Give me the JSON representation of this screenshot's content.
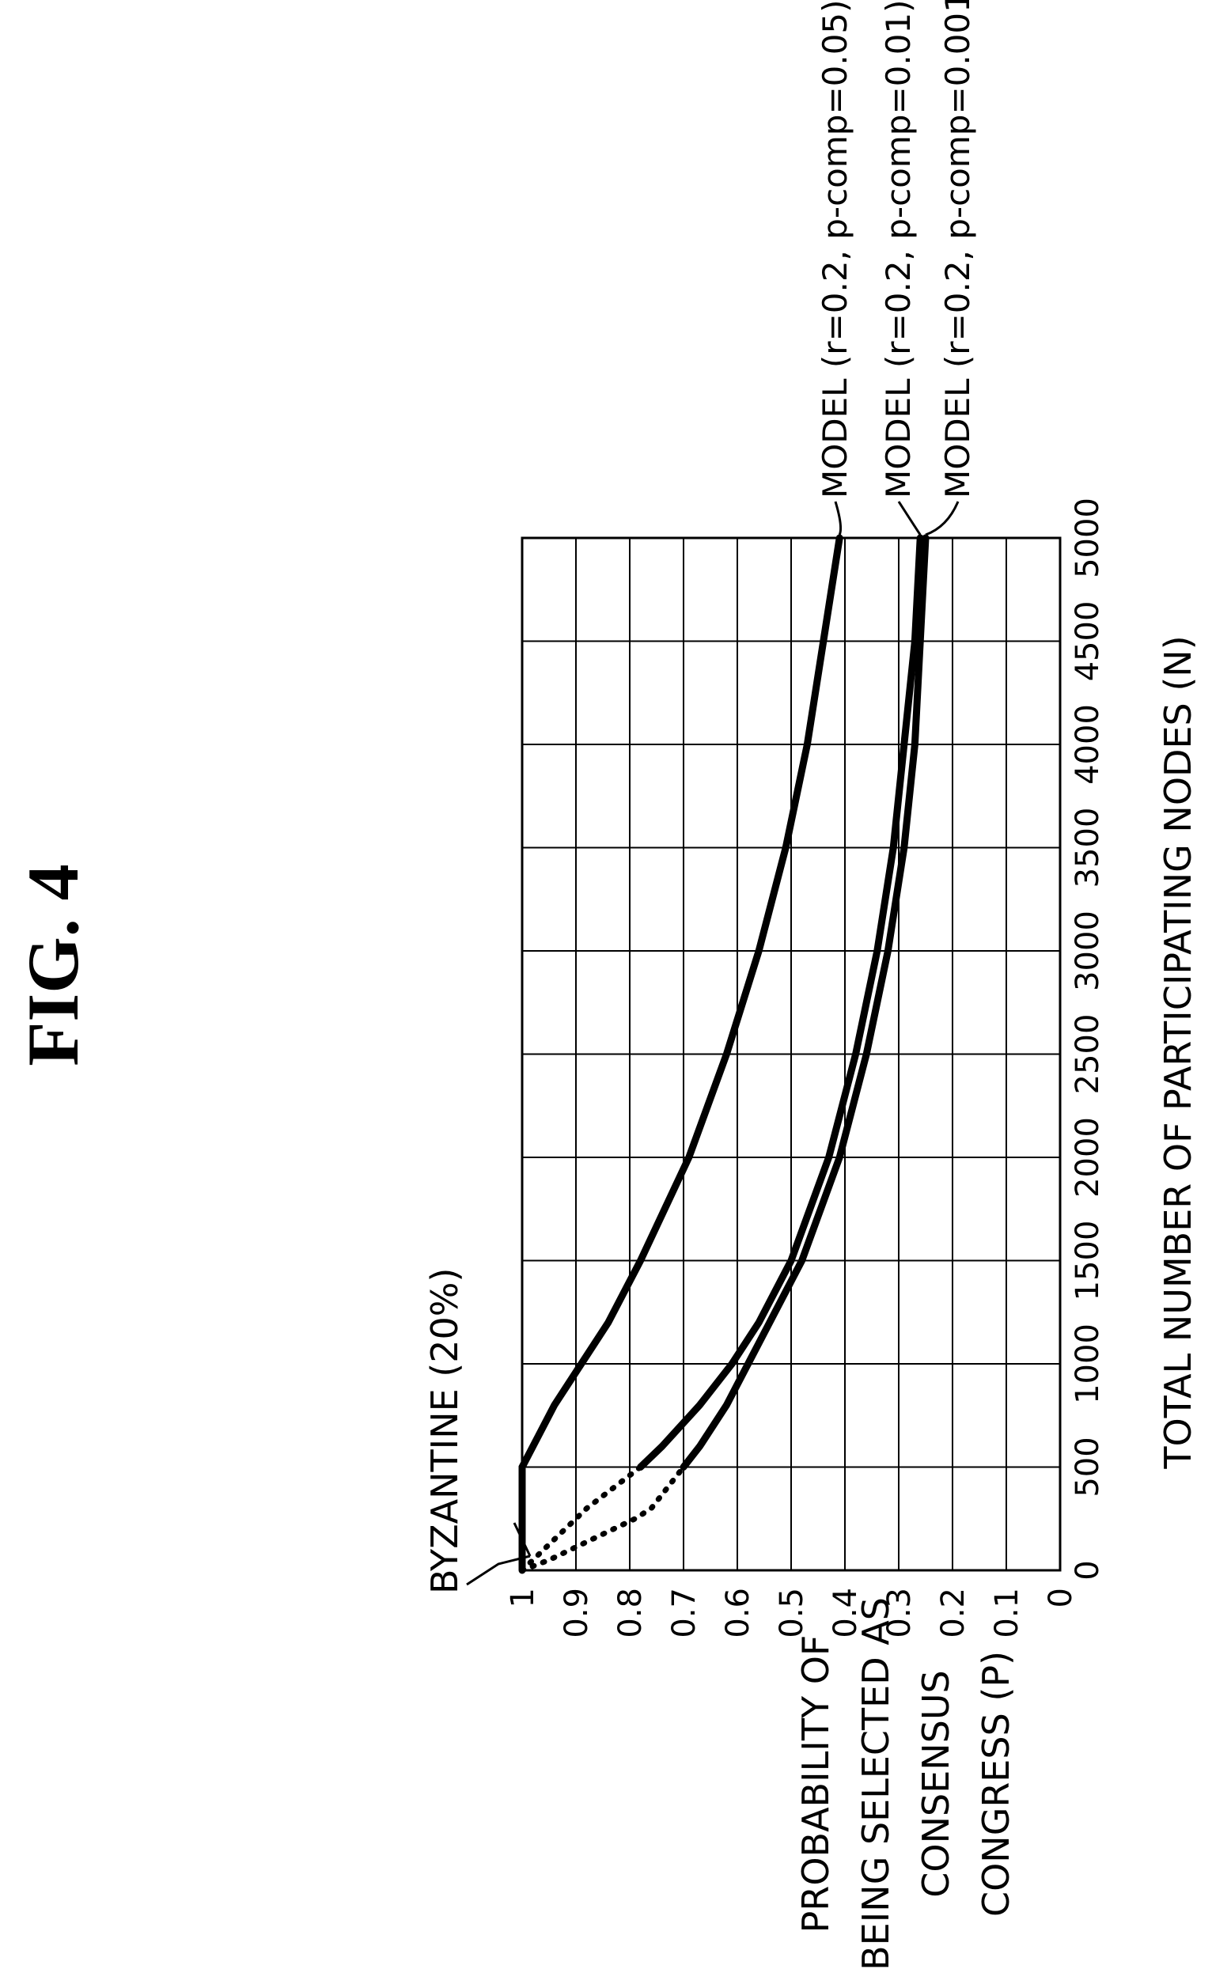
{
  "figure_label": "FIG. 4",
  "chart_data": {
    "type": "line",
    "orientation": "rotated-90-ccw",
    "xlabel": "TOTAL NUMBER OF PARTICIPATING NODES (N)",
    "ylabel_lines": [
      "PROBABILITY OF",
      "BEING SELECTED AS",
      "CONSENSUS",
      "CONGRESS (P)"
    ],
    "xlim": [
      0,
      5000
    ],
    "ylim": [
      0,
      1
    ],
    "x_ticks": [
      0,
      500,
      1000,
      1500,
      2000,
      2500,
      3000,
      3500,
      4000,
      4500,
      5000
    ],
    "y_ticks": [
      0,
      0.1,
      0.2,
      0.3,
      0.4,
      0.5,
      0.6,
      0.7,
      0.8,
      0.9,
      1
    ],
    "y_tick_labels": [
      "0",
      "0.1",
      "0.2",
      "0.3",
      "0.4",
      "0.5",
      "0.6",
      "0.7",
      "0.8",
      "0.9",
      "1"
    ],
    "grid": true,
    "series": [
      {
        "name": "MODEL (r=0.2, p-comp=0.05)",
        "x": [
          0,
          50,
          100,
          200,
          300,
          400,
          500,
          600,
          800,
          1000,
          1200,
          1500,
          2000,
          2500,
          3000,
          3500,
          4000,
          4500,
          5000
        ],
        "y": [
          1,
          1,
          1,
          1,
          1,
          1,
          1,
          0.98,
          0.94,
          0.89,
          0.84,
          0.78,
          0.69,
          0.62,
          0.56,
          0.51,
          0.47,
          0.44,
          0.41
        ]
      },
      {
        "name": "MODEL (r=0.2, p-comp=0.01)",
        "x": [
          0,
          50,
          100,
          150,
          200,
          250,
          300,
          400,
          500,
          600,
          800,
          1000,
          1200,
          1500,
          2000,
          2500,
          3000,
          3500,
          4000,
          4500,
          5000
        ],
        "y": [
          1,
          0.98,
          0.96,
          0.94,
          0.92,
          0.9,
          0.88,
          0.83,
          0.78,
          0.74,
          0.67,
          0.61,
          0.56,
          0.5,
          0.43,
          0.38,
          0.34,
          0.31,
          0.29,
          0.27,
          0.26
        ]
      },
      {
        "name": "MODEL (r=0.2, p-comp=0.001)",
        "x": [
          0,
          50,
          100,
          150,
          200,
          250,
          300,
          400,
          500,
          600,
          800,
          1000,
          1200,
          1500,
          2000,
          2500,
          3000,
          3500,
          4000,
          4500,
          5000
        ],
        "y": [
          1,
          0.95,
          0.91,
          0.87,
          0.83,
          0.79,
          0.76,
          0.73,
          0.7,
          0.67,
          0.62,
          0.58,
          0.54,
          0.48,
          0.41,
          0.36,
          0.32,
          0.29,
          0.27,
          0.26,
          0.25
        ]
      }
    ],
    "dotted_until_x": 500,
    "annotations": [
      {
        "text": "BYZANTINE (20%)",
        "x": 0,
        "y": 1
      }
    ]
  }
}
